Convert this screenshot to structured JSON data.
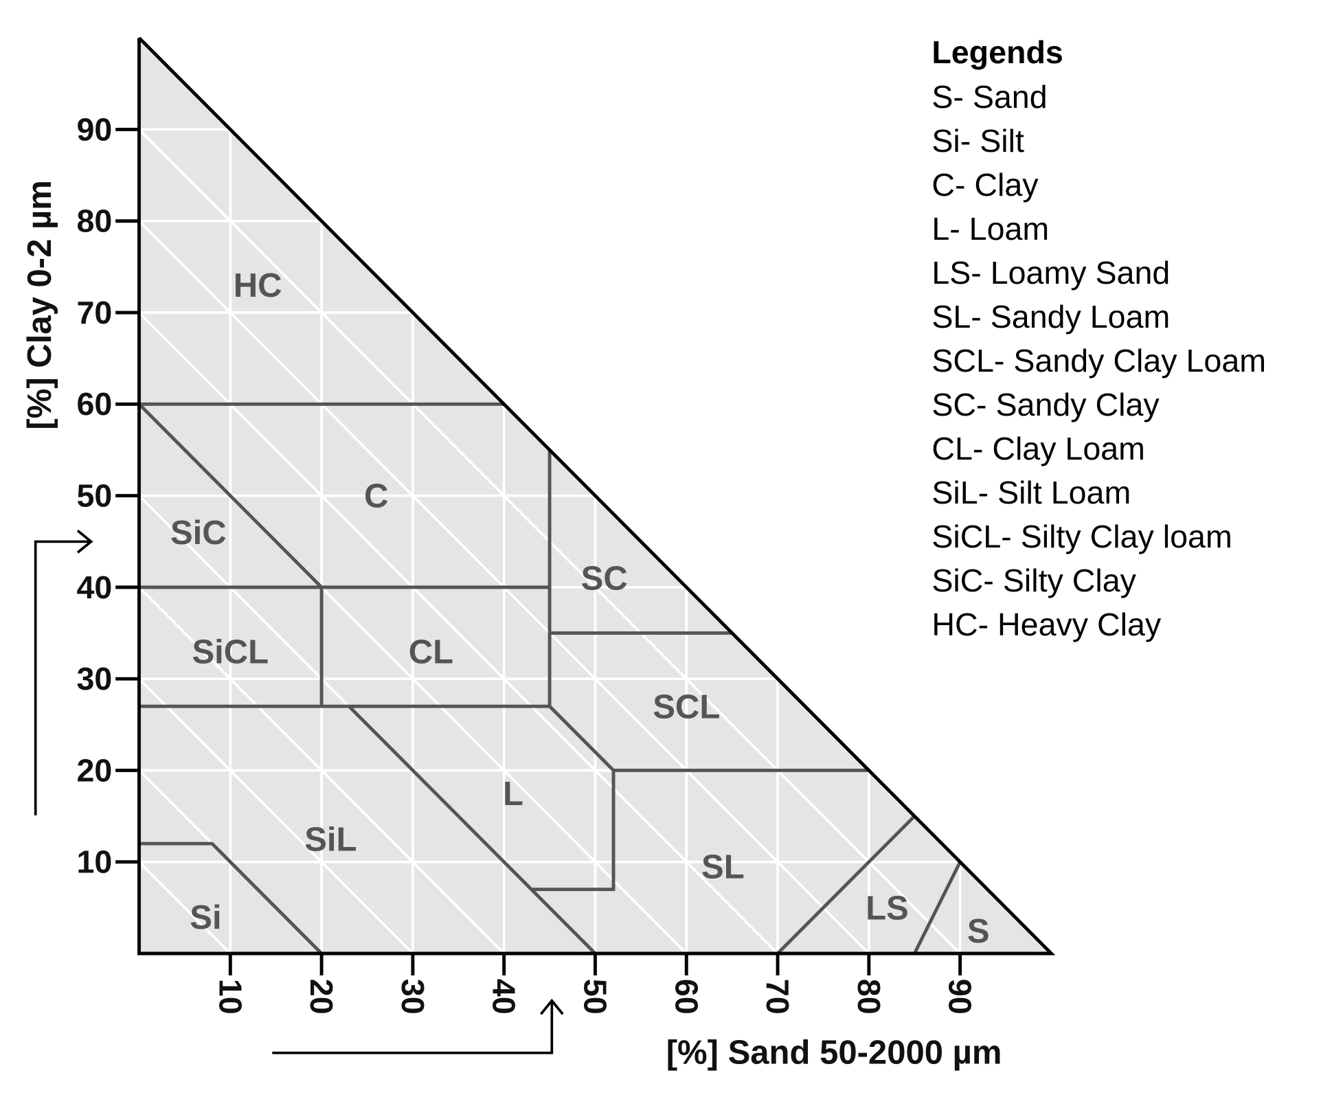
{
  "chart_data": {
    "type": "ternary-texture-triangle",
    "xlabel": "[%] Sand 50-2000 µm",
    "ylabel": "[%] Clay 0-2 µm",
    "xlim": [
      0,
      100
    ],
    "ylim": [
      0,
      100
    ],
    "x_ticks": [
      "10",
      "20",
      "30",
      "40",
      "50",
      "60",
      "70",
      "80",
      "90"
    ],
    "x_tick_values": [
      10,
      20,
      30,
      40,
      50,
      60,
      70,
      80,
      90
    ],
    "y_ticks": [
      "10",
      "20",
      "30",
      "40",
      "50",
      "60",
      "70",
      "80",
      "90"
    ],
    "y_tick_values": [
      10,
      20,
      30,
      40,
      50,
      60,
      70,
      80,
      90
    ],
    "grid": true,
    "colors": {
      "fill": "#e5e5e5",
      "grid": "#ffffff",
      "boundary": "#555555",
      "axis": "#000000",
      "label": "#555555"
    },
    "boundaries": [
      [
        [
          0,
          60
        ],
        [
          40,
          60
        ]
      ],
      [
        [
          0,
          60
        ],
        [
          20,
          40
        ]
      ],
      [
        [
          0,
          40
        ],
        [
          45,
          40
        ]
      ],
      [
        [
          20,
          40
        ],
        [
          20,
          27
        ]
      ],
      [
        [
          45,
          55
        ],
        [
          45,
          27
        ]
      ],
      [
        [
          45,
          35
        ],
        [
          65,
          35
        ]
      ],
      [
        [
          0,
          27
        ],
        [
          45,
          27
        ]
      ],
      [
        [
          23,
          27
        ],
        [
          50,
          0
        ]
      ],
      [
        [
          45,
          27
        ],
        [
          52,
          20
        ],
        [
          80,
          20
        ]
      ],
      [
        [
          52,
          20
        ],
        [
          52,
          7
        ],
        [
          43,
          7
        ]
      ],
      [
        [
          70,
          0
        ],
        [
          85,
          15
        ]
      ],
      [
        [
          85,
          0
        ],
        [
          90,
          10
        ]
      ],
      [
        [
          0,
          12
        ],
        [
          8,
          12
        ],
        [
          20,
          0
        ]
      ]
    ],
    "regions": [
      {
        "label": "HC",
        "sand": 13,
        "clay": 73
      },
      {
        "label": "C",
        "sand": 26,
        "clay": 50
      },
      {
        "label": "SiC",
        "sand": 6.5,
        "clay": 46
      },
      {
        "label": "SC",
        "sand": 51,
        "clay": 41
      },
      {
        "label": "SiCL",
        "sand": 10,
        "clay": 33
      },
      {
        "label": "CL",
        "sand": 32,
        "clay": 33
      },
      {
        "label": "SCL",
        "sand": 60,
        "clay": 27
      },
      {
        "label": "L",
        "sand": 41,
        "clay": 17.5
      },
      {
        "label": "SiL",
        "sand": 21,
        "clay": 12.5
      },
      {
        "label": "SL",
        "sand": 64,
        "clay": 9.5
      },
      {
        "label": "LS",
        "sand": 82,
        "clay": 5
      },
      {
        "label": "S",
        "sand": 92,
        "clay": 2.5
      },
      {
        "label": "Si",
        "sand": 7.3,
        "clay": 4
      }
    ]
  },
  "legend": {
    "title": "Legends",
    "items": [
      "S- Sand",
      "Si- Silt",
      "C- Clay",
      "L- Loam",
      "LS- Loamy Sand",
      "SL- Sandy Loam",
      "SCL- Sandy Clay Loam",
      "SC- Sandy Clay",
      "CL- Clay Loam",
      "SiL- Silt Loam",
      "SiCL- Silty Clay loam",
      "SiC- Silty Clay",
      "HC- Heavy Clay"
    ]
  }
}
